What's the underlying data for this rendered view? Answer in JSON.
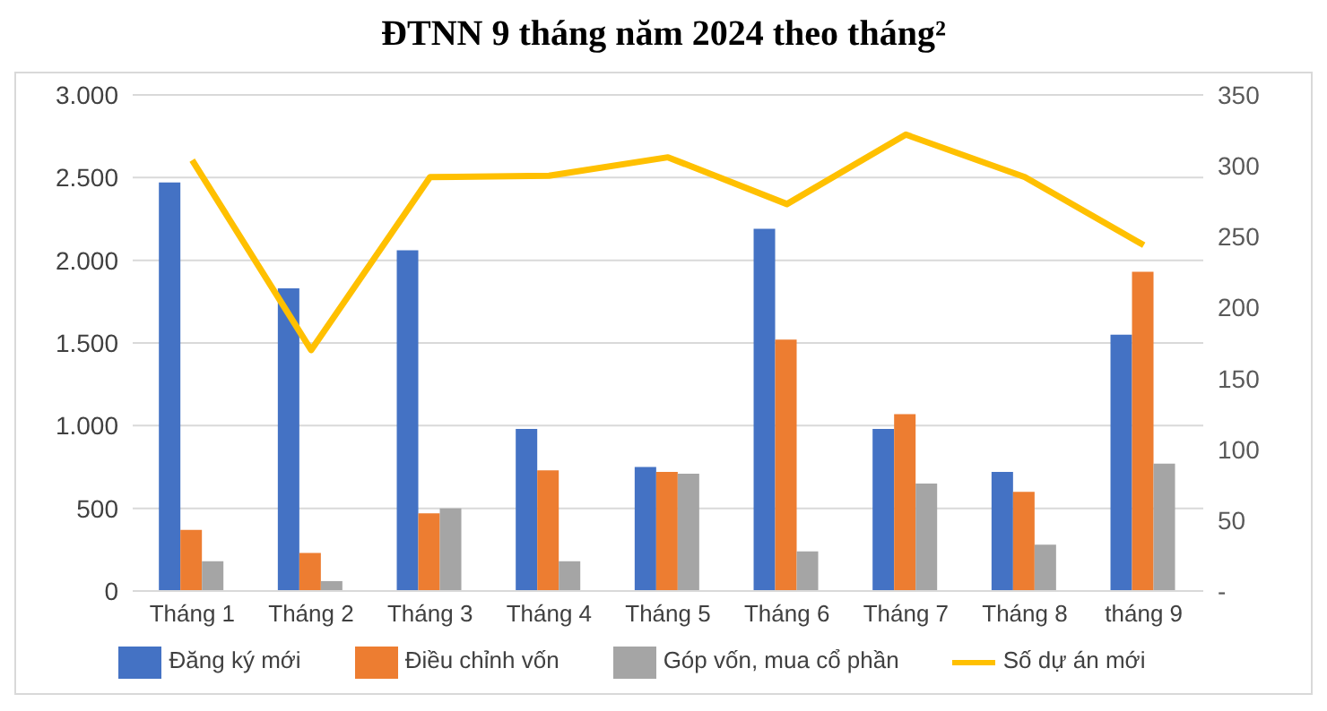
{
  "chart_data": {
    "type": "bar",
    "title": "ĐTNN 9 tháng năm 2024 theo tháng²",
    "categories": [
      "Tháng 1",
      "Tháng 2",
      "Tháng 3",
      "Tháng 4",
      "Tháng 5",
      "Tháng 6",
      "Tháng 7",
      "Tháng 8",
      "tháng 9"
    ],
    "series": [
      {
        "name": "Đăng ký mới",
        "color": "#4472c4",
        "values": [
          2470,
          1830,
          2060,
          980,
          750,
          2190,
          980,
          720,
          1550
        ]
      },
      {
        "name": "Điều chỉnh vốn",
        "color": "#ed7d31",
        "values": [
          370,
          230,
          470,
          730,
          720,
          1520,
          1070,
          600,
          1930
        ]
      },
      {
        "name": "Góp vốn, mua cổ phần",
        "color": "#a5a5a5",
        "values": [
          180,
          60,
          500,
          180,
          710,
          240,
          650,
          280,
          770
        ]
      },
      {
        "name": "Số dự án mới",
        "color": "#ffc000",
        "type": "line",
        "axis": "y2",
        "values": [
          304,
          170,
          292,
          293,
          306,
          273,
          322,
          292,
          244
        ]
      }
    ],
    "ylim": [
      0,
      3000
    ],
    "yticks": [
      {
        "value": 0,
        "label": "0"
      },
      {
        "value": 500,
        "label": "500"
      },
      {
        "value": 1000,
        "label": "1.000"
      },
      {
        "value": 1500,
        "label": "1.500"
      },
      {
        "value": 2000,
        "label": "2.000"
      },
      {
        "value": 2500,
        "label": "2.500"
      },
      {
        "value": 3000,
        "label": "3.000"
      }
    ],
    "y2lim": [
      0,
      350
    ],
    "y2ticks": [
      {
        "value": 0,
        "label": "-"
      },
      50,
      100,
      150,
      200,
      250,
      300,
      350
    ],
    "grid": "y",
    "legend": "bottom",
    "marker": "none"
  }
}
